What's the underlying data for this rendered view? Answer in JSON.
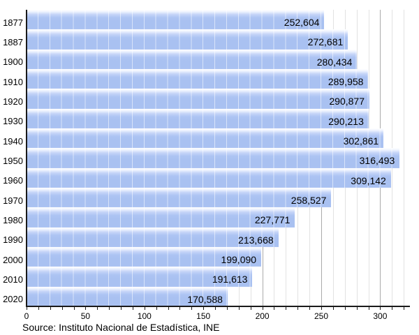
{
  "chart_data": {
    "type": "bar",
    "orientation": "horizontal",
    "title": "",
    "categories": [
      "1877",
      "1887",
      "1900",
      "1910",
      "1920",
      "1930",
      "1940",
      "1950",
      "1960",
      "1970",
      "1980",
      "1990",
      "2000",
      "2010",
      "2020"
    ],
    "values": [
      252604,
      272681,
      280434,
      289958,
      290877,
      290213,
      302861,
      316493,
      309142,
      258527,
      227771,
      213668,
      199090,
      191613,
      170588
    ],
    "value_labels": [
      "252,604",
      "272,681",
      "280,434",
      "289,958",
      "290,877",
      "290,213",
      "302,861",
      "316,493",
      "309,142",
      "258,527",
      "227,771",
      "213,668",
      "199,090",
      "191,613",
      "170,588"
    ],
    "x_axis": {
      "tick_labels": [
        "0",
        "50",
        "100",
        "150",
        "200",
        "250",
        "300"
      ],
      "tick_values": [
        0,
        50,
        100,
        150,
        200,
        250,
        300
      ],
      "minor_tick_step": 10,
      "max_minor_tick": 320,
      "xlim": [
        0,
        331
      ],
      "unit_divisor": 1000
    },
    "ylabel": "",
    "xlabel": "",
    "grid": "vertical",
    "legend": "none",
    "source_note": "Source: Instituto Nacional de Estadística, INE",
    "colors": {
      "bar_solid": "#a9c1f1",
      "bar_gloss_top": "#ffffff",
      "grid_minor": "#e2e2e2",
      "grid_major": "#ababab",
      "axis": "#1a1a1a",
      "text": "#000000",
      "background": "#ffffff"
    }
  }
}
